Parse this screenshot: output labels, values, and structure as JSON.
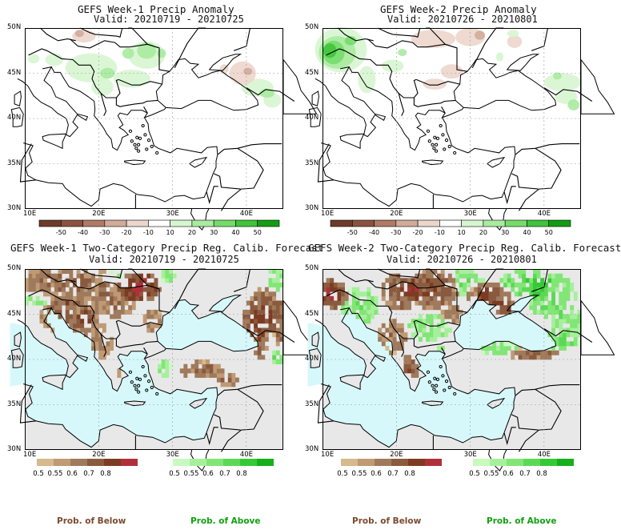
{
  "panels": [
    {
      "title": "GEFS Week-1 Precip Anomaly",
      "valid": "Valid: 20210719 - 20210725"
    },
    {
      "title": "GEFS Week-2 Precip Anomaly",
      "valid": "Valid: 20210726 - 20210801"
    },
    {
      "title": "GEFS Week-1 Two-Category Precip Reg. Calib. Forecast",
      "valid": "Valid: 20210719 - 20210725"
    },
    {
      "title": "GEFS Week-2 Two-Category Precip Reg. Calib. Forecast",
      "valid": "Valid: 20210726 - 20210801"
    }
  ],
  "lat_labels": [
    "50N",
    "45N",
    "40N",
    "35N",
    "30N"
  ],
  "lon_labels": [
    "10E",
    "20E",
    "30E",
    "40E"
  ],
  "anomaly_colorbar": {
    "labels": [
      "-50",
      "-40",
      "-30",
      "-20",
      "-10",
      "10",
      "20",
      "30",
      "40",
      "50"
    ],
    "colors": [
      "#6e3b2a",
      "#8c5240",
      "#b07a65",
      "#d2aa99",
      "#ecd6cc",
      "#ffffff",
      "#d7f5d0",
      "#a9eba0",
      "#74dd6a",
      "#3fc43b",
      "#129e14"
    ]
  },
  "prob_below_colorbar": {
    "labels": [
      "0.5",
      "0.55",
      "0.6",
      "0.7",
      "0.8"
    ],
    "colors": [
      "#d6b98c",
      "#bf9a74",
      "#a07a5c",
      "#8a5a3e",
      "#7d3b22",
      "#b0303a"
    ]
  },
  "prob_above_colorbar": {
    "labels": [
      "0.5",
      "0.55",
      "0.6",
      "0.7",
      "0.8"
    ],
    "colors": [
      "#c8fac0",
      "#a6f09c",
      "#82e676",
      "#5cd954",
      "#36c936",
      "#16b01a"
    ]
  },
  "legend_titles": {
    "below": "Prob. of Below",
    "above": "Prob. of Above"
  },
  "colors": {
    "sea": "#d6f8fb",
    "land_gray": "#e8e8e8",
    "below_text": "#7b4a2e",
    "above_text": "#12a012"
  }
}
